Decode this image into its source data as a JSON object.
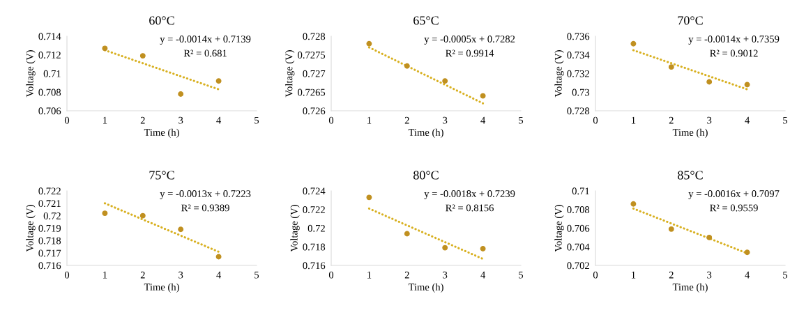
{
  "chart_data": [
    {
      "type": "scatter",
      "title": "60°C",
      "xlabel": "Time (h)",
      "ylabel": "Voltage (V)",
      "xlim": [
        0,
        5
      ],
      "xticks": [
        0,
        1,
        2,
        3,
        4,
        5
      ],
      "ylim": [
        0.706,
        0.714
      ],
      "yticks": [
        0.706,
        0.708,
        0.71,
        0.712,
        0.714
      ],
      "grid": false,
      "legend": false,
      "series": [
        {
          "x": [
            1,
            2,
            3,
            4
          ],
          "values": [
            0.7127,
            0.7119,
            0.7078,
            0.7092
          ],
          "color": "#c09020",
          "marker": "circle"
        },
        {
          "type": "line",
          "x": [
            1,
            4
          ],
          "values": [
            0.7125,
            0.7083
          ],
          "color": "#d8b020",
          "line_style": "dotted"
        }
      ],
      "annotations": [
        "y = -0.0014x + 0.7139",
        "R² = 0.681"
      ]
    },
    {
      "type": "scatter",
      "title": "65°C",
      "xlabel": "Time (h)",
      "ylabel": "Voltage (V)",
      "xlim": [
        0,
        5
      ],
      "xticks": [
        0,
        1,
        2,
        3,
        4,
        5
      ],
      "ylim": [
        0.726,
        0.728
      ],
      "yticks": [
        0.726,
        0.7265,
        0.727,
        0.7275,
        0.728
      ],
      "grid": false,
      "legend": false,
      "series": [
        {
          "x": [
            1,
            2,
            3,
            4
          ],
          "values": [
            0.7278,
            0.7272,
            0.7268,
            0.7264
          ],
          "color": "#c09020",
          "marker": "circle"
        },
        {
          "type": "line",
          "x": [
            1,
            4
          ],
          "values": [
            0.7277,
            0.7262
          ],
          "color": "#d8b020",
          "line_style": "dotted"
        }
      ],
      "annotations": [
        "y = -0.0005x + 0.7282",
        "R² = 0.9914"
      ]
    },
    {
      "type": "scatter",
      "title": "70°C",
      "xlabel": "Time (h)",
      "ylabel": "Voltage (V)",
      "xlim": [
        0,
        5
      ],
      "xticks": [
        0,
        1,
        2,
        3,
        4,
        5
      ],
      "ylim": [
        0.728,
        0.736
      ],
      "yticks": [
        0.728,
        0.73,
        0.732,
        0.734,
        0.736
      ],
      "grid": false,
      "legend": false,
      "series": [
        {
          "x": [
            1,
            2,
            3,
            4
          ],
          "values": [
            0.7352,
            0.7327,
            0.7311,
            0.7308
          ],
          "color": "#c09020",
          "marker": "circle"
        },
        {
          "type": "line",
          "x": [
            1,
            4
          ],
          "values": [
            0.7345,
            0.7303
          ],
          "color": "#d8b020",
          "line_style": "dotted"
        }
      ],
      "annotations": [
        "y = -0.0014x + 0.7359",
        "R² = 0.9012"
      ]
    },
    {
      "type": "scatter",
      "title": "75°C",
      "xlabel": "Time (h)",
      "ylabel": "Voltage (V)",
      "xlim": [
        0,
        5
      ],
      "xticks": [
        0,
        1,
        2,
        3,
        4,
        5
      ],
      "ylim": [
        0.716,
        0.722
      ],
      "yticks": [
        0.716,
        0.717,
        0.718,
        0.719,
        0.72,
        0.721,
        0.722
      ],
      "grid": false,
      "legend": false,
      "series": [
        {
          "x": [
            1,
            2,
            3,
            4
          ],
          "values": [
            0.7202,
            0.72,
            0.7189,
            0.7167
          ],
          "color": "#c09020",
          "marker": "circle"
        },
        {
          "type": "line",
          "x": [
            1,
            4
          ],
          "values": [
            0.721,
            0.7171
          ],
          "color": "#d8b020",
          "line_style": "dotted"
        }
      ],
      "annotations": [
        "y = -0.0013x + 0.7223",
        "R² = 0.9389"
      ]
    },
    {
      "type": "scatter",
      "title": "80°C",
      "xlabel": "Time (h)",
      "ylabel": "Voltage (V)",
      "xlim": [
        0,
        5
      ],
      "xticks": [
        0,
        1,
        2,
        3,
        4,
        5
      ],
      "ylim": [
        0.716,
        0.724
      ],
      "yticks": [
        0.716,
        0.718,
        0.72,
        0.722,
        0.724
      ],
      "grid": false,
      "legend": false,
      "series": [
        {
          "x": [
            1,
            2,
            3,
            4
          ],
          "values": [
            0.7233,
            0.7194,
            0.7179,
            0.7178
          ],
          "color": "#c09020",
          "marker": "circle"
        },
        {
          "type": "line",
          "x": [
            1,
            4
          ],
          "values": [
            0.7221,
            0.7167
          ],
          "color": "#d8b020",
          "line_style": "dotted"
        }
      ],
      "annotations": [
        "y = -0.0018x + 0.7239",
        "R² = 0.8156"
      ]
    },
    {
      "type": "scatter",
      "title": "85°C",
      "xlabel": "Time (h)",
      "ylabel": "Voltage (V)",
      "xlim": [
        0,
        5
      ],
      "xticks": [
        0,
        1,
        2,
        3,
        4,
        5
      ],
      "ylim": [
        0.702,
        0.71
      ],
      "yticks": [
        0.702,
        0.704,
        0.706,
        0.708,
        0.71
      ],
      "grid": false,
      "legend": false,
      "series": [
        {
          "x": [
            1,
            2,
            3,
            4
          ],
          "values": [
            0.7086,
            0.7059,
            0.705,
            0.7034
          ],
          "color": "#c09020",
          "marker": "circle"
        },
        {
          "type": "line",
          "x": [
            1,
            4
          ],
          "values": [
            0.7081,
            0.7033
          ],
          "color": "#d8b020",
          "line_style": "dotted"
        }
      ],
      "annotations": [
        "y = -0.0016x + 0.7097",
        "R² = 0.9559"
      ]
    }
  ]
}
